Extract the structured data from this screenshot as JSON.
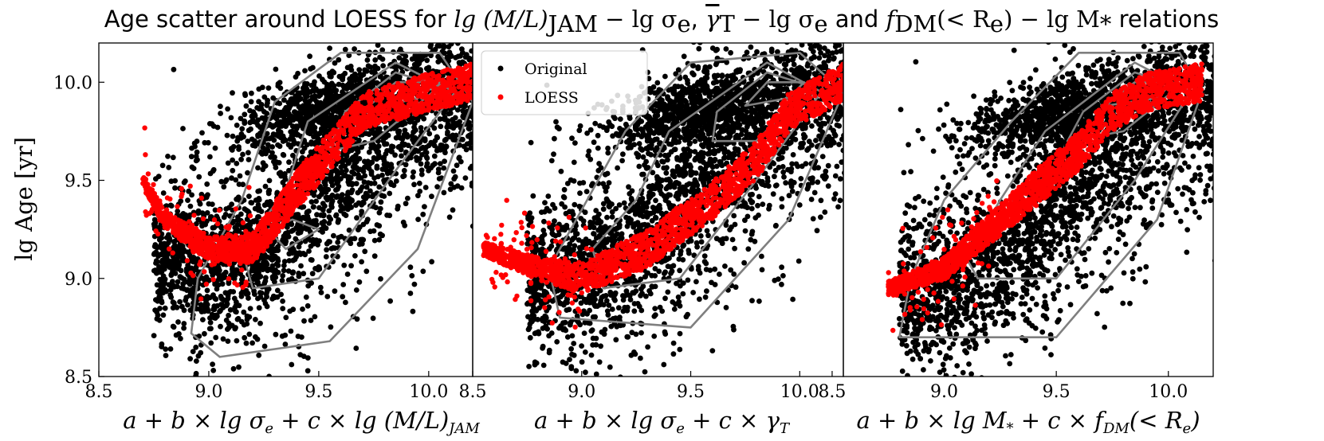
{
  "title": {
    "prefix": "Age scatter around LOESS for ",
    "expr1": "lg (M/L)",
    "expr1_sub": "JAM",
    "expr1_tail": " − lg σ",
    "expr1_tail_sub": "e",
    "sep1": ", ",
    "expr2": "γ",
    "expr2_sub": "T",
    "expr2_tail": " − lg σ",
    "expr2_tail_sub": "e",
    "sep2": " and ",
    "expr3": "f",
    "expr3_sub": "DM",
    "expr3_mid": "(< R",
    "expr3_mid_sub": "e",
    "expr3_tail": ") − lg M",
    "expr3_tail_sub": "*",
    "suffix": " relations"
  },
  "ylabel": {
    "text": "lg Age [yr]"
  },
  "colors": {
    "original": "#000000",
    "loess": "#ff0000",
    "contour": "#7f7f7f"
  },
  "legend": {
    "location": "upper-left of panel 2",
    "entries": [
      "Original",
      "LOESS"
    ]
  },
  "chart_data": [
    {
      "type": "scatter",
      "xlabel": "a + b × lg σe + c × lg (M/L)JAM",
      "xlabel_parts": {
        "main": "a + b × lg σ",
        "sub1": "e",
        "mid": " + c × lg (M/L)",
        "sub2": "JAM"
      },
      "ylabel": "lg Age [yr]",
      "xlim": [
        8.5,
        10.2
      ],
      "ylim": [
        8.5,
        10.2
      ],
      "xticks": [
        "8.5",
        "9.0",
        "9.5",
        "10.0"
      ],
      "yticks": [
        "8.5",
        "9.0",
        "9.5",
        "10.0"
      ],
      "original": {
        "center": [
          9.75,
          9.75
        ],
        "spread": [
          0.38,
          0.42
        ],
        "trend": [
          [
            8.75,
            9.1
          ],
          [
            9.2,
            9.1
          ],
          [
            9.6,
            9.55
          ],
          [
            10.1,
            9.95
          ]
        ],
        "count": 2600
      },
      "loess": [
        [
          8.7,
          9.5
        ],
        [
          8.8,
          9.3
        ],
        [
          9.0,
          9.15
        ],
        [
          9.2,
          9.15
        ],
        [
          9.4,
          9.45
        ],
        [
          9.55,
          9.65
        ],
        [
          9.7,
          9.85
        ],
        [
          10.0,
          9.95
        ],
        [
          10.2,
          10.0
        ]
      ],
      "contours": [
        [
          [
            9.05,
            8.6
          ],
          [
            9.55,
            8.68
          ],
          [
            9.95,
            9.15
          ],
          [
            10.2,
            9.9
          ],
          [
            10.05,
            10.15
          ],
          [
            9.6,
            10.15
          ],
          [
            9.3,
            9.9
          ],
          [
            9.15,
            9.4
          ],
          [
            8.95,
            9.0
          ],
          [
            8.92,
            8.72
          ]
        ],
        [
          [
            9.2,
            8.95
          ],
          [
            9.5,
            9.0
          ],
          [
            9.85,
            9.55
          ],
          [
            10.12,
            9.95
          ],
          [
            9.85,
            10.1
          ],
          [
            9.45,
            9.8
          ],
          [
            9.35,
            9.45
          ],
          [
            9.15,
            9.15
          ]
        ],
        [
          [
            9.35,
            9.15
          ],
          [
            9.5,
            9.25
          ],
          [
            9.38,
            9.3
          ],
          [
            9.27,
            9.25
          ]
        ],
        [
          [
            9.55,
            9.65
          ],
          [
            9.75,
            9.7
          ],
          [
            10.05,
            9.98
          ],
          [
            9.85,
            10.05
          ],
          [
            9.62,
            9.85
          ]
        ],
        [
          [
            9.7,
            9.85
          ],
          [
            9.95,
            9.92
          ],
          [
            10.05,
            10.0
          ],
          [
            9.85,
            10.0
          ]
        ]
      ]
    },
    {
      "type": "scatter",
      "xlabel": "a + b × lg σe + c × γT",
      "xlabel_parts": {
        "main": "a + b × lg σ",
        "sub1": "e",
        "mid": " + c × γ",
        "sub2": "T"
      },
      "xlim": [
        8.5,
        10.2
      ],
      "ylim": [
        8.5,
        10.2
      ],
      "xticks": [
        "8.5",
        "9.0",
        "9.5",
        "10.0"
      ],
      "yticks": [],
      "original": {
        "center": [
          9.75,
          9.75
        ],
        "spread": [
          0.38,
          0.42
        ],
        "trend": [
          [
            8.75,
            9.0
          ],
          [
            9.2,
            9.1
          ],
          [
            9.6,
            9.55
          ],
          [
            10.1,
            9.95
          ]
        ],
        "count": 2600
      },
      "loess": [
        [
          8.55,
          9.15
        ],
        [
          8.8,
          9.05
        ],
        [
          9.0,
          9.0
        ],
        [
          9.3,
          9.15
        ],
        [
          9.6,
          9.4
        ],
        [
          9.8,
          9.6
        ],
        [
          9.95,
          9.85
        ],
        [
          10.2,
          10.0
        ]
      ],
      "contours": [
        [
          [
            8.9,
            8.8
          ],
          [
            9.5,
            8.75
          ],
          [
            9.95,
            9.3
          ],
          [
            10.2,
            9.95
          ],
          [
            10.0,
            10.15
          ],
          [
            9.5,
            10.1
          ],
          [
            9.2,
            9.75
          ],
          [
            9.0,
            9.35
          ],
          [
            8.85,
            9.05
          ]
        ],
        [
          [
            9.1,
            8.95
          ],
          [
            9.45,
            9.0
          ],
          [
            9.8,
            9.5
          ],
          [
            10.1,
            9.95
          ],
          [
            9.85,
            10.1
          ],
          [
            9.4,
            9.75
          ],
          [
            9.25,
            9.4
          ],
          [
            9.05,
            9.15
          ]
        ],
        [
          [
            9.6,
            9.7
          ],
          [
            9.8,
            9.7
          ],
          [
            10.05,
            9.98
          ],
          [
            9.85,
            10.05
          ],
          [
            9.62,
            9.85
          ]
        ],
        [
          [
            9.75,
            9.88
          ],
          [
            9.95,
            9.92
          ],
          [
            10.02,
            10.0
          ],
          [
            9.85,
            10.0
          ]
        ]
      ]
    },
    {
      "type": "scatter",
      "xlabel": "a + b × lg M* + c × fDM(< Re)",
      "xlabel_parts": {
        "main": "a + b × lg M",
        "sub1": "*",
        "mid": " + c × f",
        "sub2": "DM",
        "tail": "(< R",
        "sub3": "e",
        "end": ")"
      },
      "xlim": [
        8.55,
        10.2
      ],
      "ylim": [
        8.5,
        10.2
      ],
      "xticks": [
        "8.5",
        "9.0",
        "9.5",
        "10.0"
      ],
      "yticks": [],
      "original": {
        "center": [
          9.75,
          9.75
        ],
        "spread": [
          0.38,
          0.42
        ],
        "trend": [
          [
            8.8,
            8.9
          ],
          [
            9.2,
            9.05
          ],
          [
            9.6,
            9.5
          ],
          [
            10.1,
            9.95
          ]
        ],
        "count": 2600
      },
      "loess": [
        [
          8.75,
          8.95
        ],
        [
          9.0,
          9.05
        ],
        [
          9.2,
          9.25
        ],
        [
          9.4,
          9.45
        ],
        [
          9.6,
          9.65
        ],
        [
          9.75,
          9.85
        ],
        [
          9.9,
          9.95
        ],
        [
          10.15,
          10.0
        ]
      ],
      "contours": [
        [
          [
            8.8,
            8.7
          ],
          [
            9.5,
            8.7
          ],
          [
            9.95,
            9.3
          ],
          [
            10.15,
            9.95
          ],
          [
            10.05,
            10.15
          ],
          [
            9.6,
            10.15
          ],
          [
            9.3,
            9.8
          ],
          [
            9.0,
            9.4
          ],
          [
            8.85,
            9.0
          ]
        ],
        [
          [
            9.15,
            9.0
          ],
          [
            9.5,
            9.0
          ],
          [
            9.85,
            9.5
          ],
          [
            10.1,
            9.95
          ],
          [
            9.85,
            10.1
          ],
          [
            9.45,
            9.75
          ],
          [
            9.25,
            9.4
          ],
          [
            9.1,
            9.1
          ]
        ],
        [
          [
            9.55,
            9.7
          ],
          [
            9.8,
            9.75
          ],
          [
            10.05,
            9.98
          ],
          [
            9.85,
            10.05
          ],
          [
            9.62,
            9.85
          ]
        ],
        [
          [
            9.72,
            9.88
          ],
          [
            9.95,
            9.92
          ],
          [
            10.02,
            10.0
          ],
          [
            9.85,
            10.0
          ]
        ]
      ]
    }
  ]
}
